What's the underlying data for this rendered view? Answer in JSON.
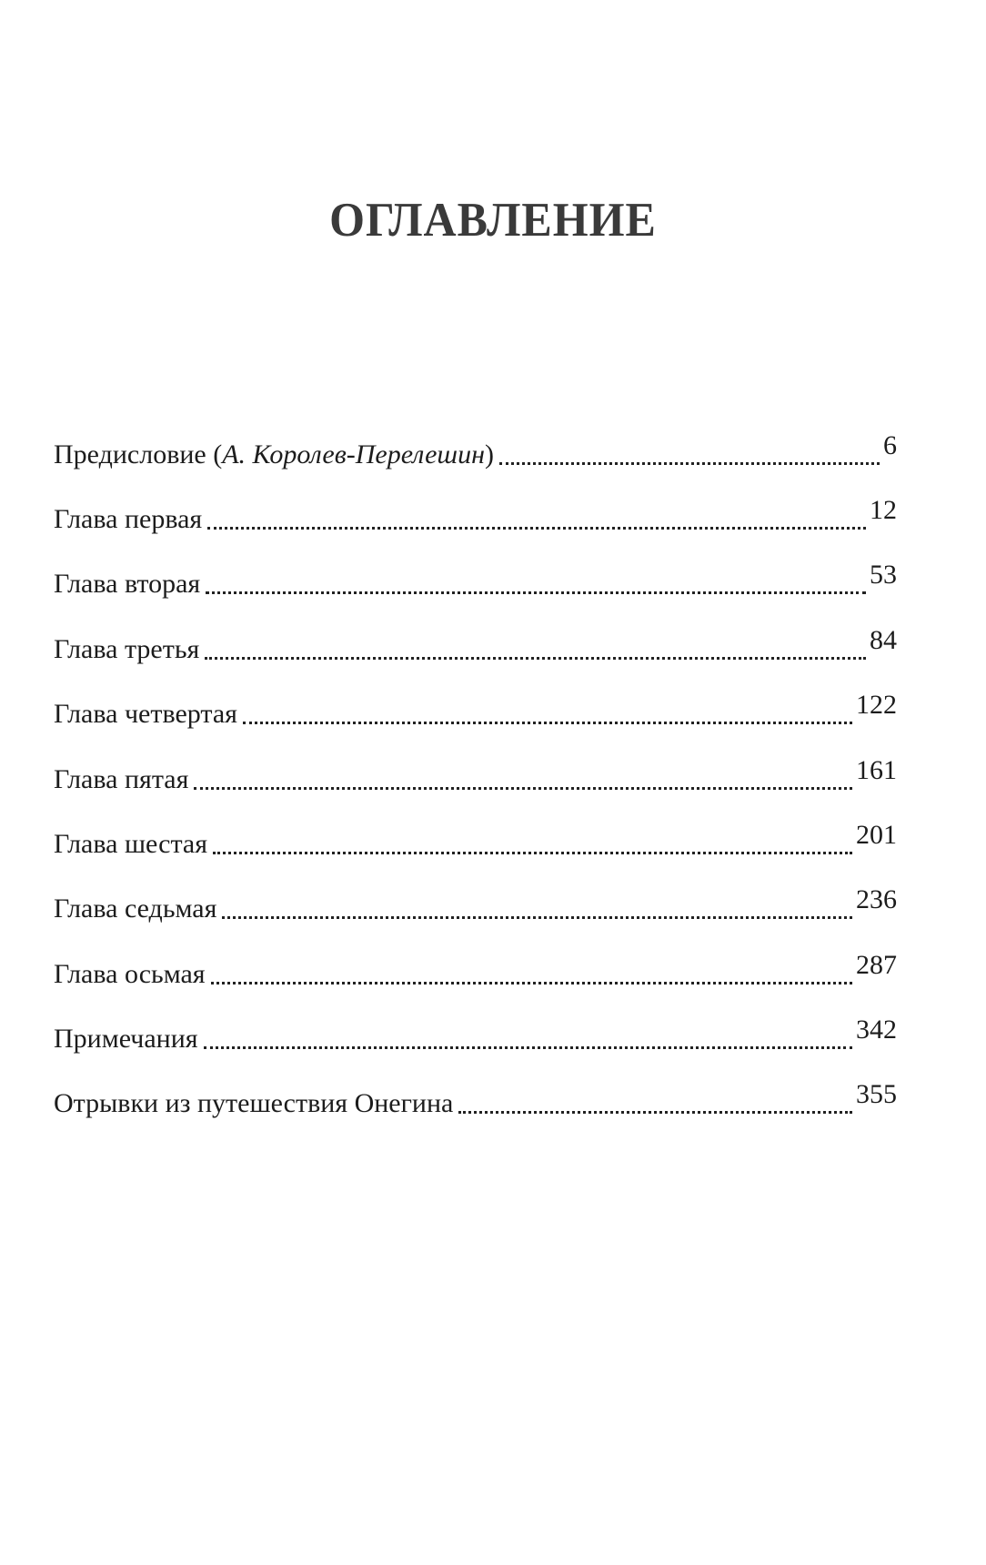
{
  "title": "ОГЛАВЛЕНИЕ",
  "entries": [
    {
      "label": "Предисловие (",
      "label_italic": "А. Королев-Перелешин",
      "label_after": ")",
      "page": "6"
    },
    {
      "label": "Глава первая",
      "page": "12"
    },
    {
      "label": "Глава вторая",
      "page": "53"
    },
    {
      "label": "Глава третья",
      "page": "84"
    },
    {
      "label": "Глава четвертая",
      "page": "122"
    },
    {
      "label": "Глава пятая",
      "page": "161"
    },
    {
      "label": "Глава шестая",
      "page": "201"
    },
    {
      "label": "Глава седьмая",
      "page": "236"
    },
    {
      "label": "Глава осьмая",
      "page": "287"
    },
    {
      "label": "Примечания",
      "page": "342"
    },
    {
      "label": "Отрывки из путешествия Онегина",
      "page": "355"
    }
  ]
}
